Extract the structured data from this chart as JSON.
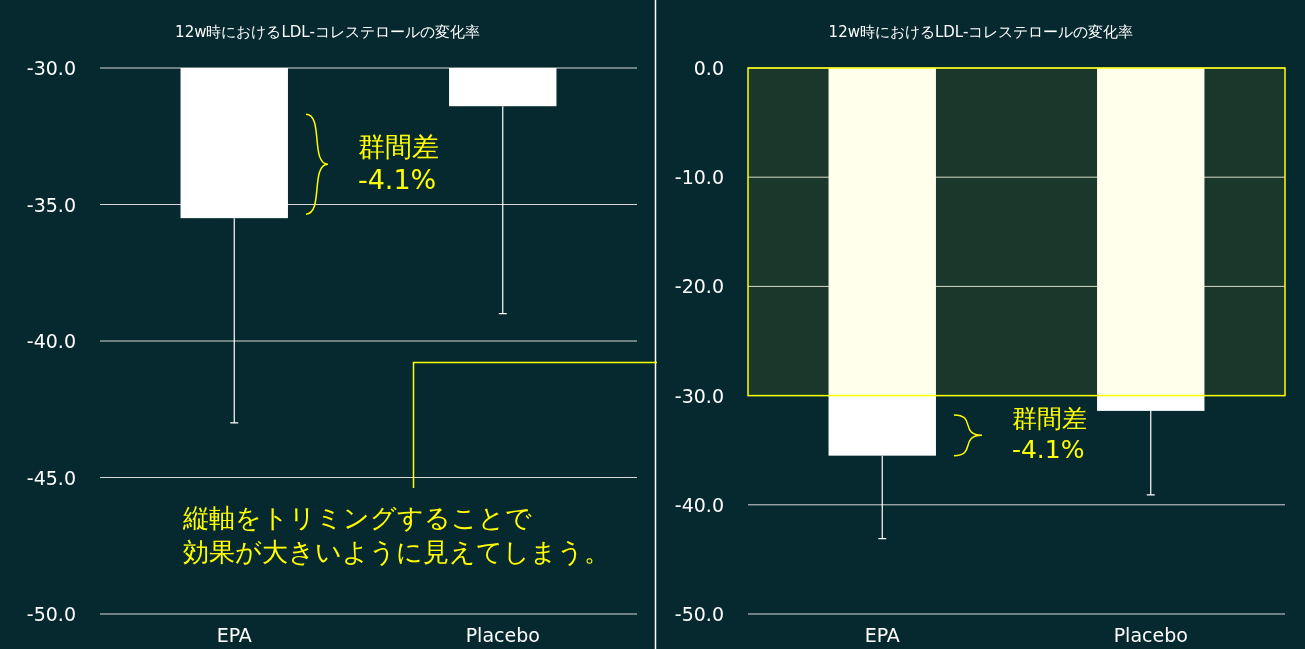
{
  "chart_data": [
    {
      "type": "bar",
      "title": "12w時におけるLDL-コレステロールの変化率",
      "categories": [
        "EPA",
        "Placebo"
      ],
      "values": [
        -35.5,
        -31.4
      ],
      "color": "#ffffff",
      "errors": [
        [
          -43.0,
          -35.5
        ],
        [
          -39.0,
          -31.4
        ]
      ],
      "ylim": [
        -50,
        -30
      ],
      "yticks": [
        {
          "value": -50,
          "label": "-50.0"
        },
        {
          "value": -45,
          "label": "-45.0"
        },
        {
          "value": -40,
          "label": "-40.0"
        },
        {
          "value": -35,
          "label": "-35.0"
        },
        {
          "value": -30,
          "label": "-30.0"
        }
      ],
      "grid": "y",
      "annotations": [
        "群間差\n-4.1%",
        "縦軸をトリミングすることで",
        "効果が大きいように見えてしまう。"
      ]
    },
    {
      "type": "bar",
      "title": "12w時におけるLDL-コレステロールの変化率",
      "categories": [
        "EPA",
        "Placebo"
      ],
      "values": [
        -35.5,
        -31.4
      ],
      "color": "#ffffff",
      "errors": [
        [
          -43.1,
          -35.5
        ],
        [
          -39.1,
          -31.4
        ]
      ],
      "ylim": [
        -50,
        0
      ],
      "yticks": [
        {
          "value": -50,
          "label": "-50.0"
        },
        {
          "value": -40,
          "label": "-40.0"
        },
        {
          "value": -30,
          "label": "-30.0"
        },
        {
          "value": -20,
          "label": "-20.0"
        },
        {
          "value": -10,
          "label": "-10.0"
        },
        {
          "value": 0,
          "label": "0.0"
        }
      ],
      "grid": "y",
      "bands": [
        {
          "axis": "y",
          "from": -30,
          "to": 0,
          "color": "#ffff00"
        }
      ],
      "annotations": [
        "群間差\n-4.1%"
      ]
    }
  ]
}
